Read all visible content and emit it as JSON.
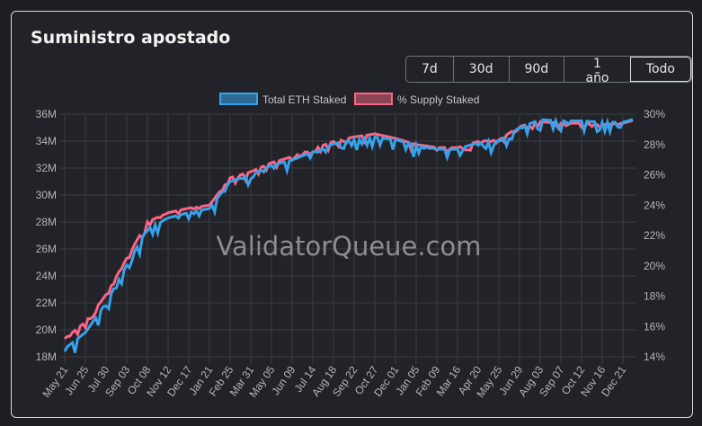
{
  "title": "Suministro apostado",
  "range_buttons": [
    {
      "label": "7d"
    },
    {
      "label": "30d"
    },
    {
      "label": "90d"
    },
    {
      "label": "1 año"
    },
    {
      "label": "Todo",
      "active": true
    }
  ],
  "watermark": "ValidatorQueue.com",
  "colors": {
    "eth": "#36a2eb",
    "supply": "#ff6384"
  },
  "chart_data": {
    "type": "line",
    "legend": [
      "Total ETH Staked",
      "% Supply Staked"
    ],
    "legend_position": "top",
    "x": [
      "May 21",
      "Jun 25",
      "Jul 30",
      "Sep 03",
      "Oct 08",
      "Nov 12",
      "Dec 17",
      "Jan 21",
      "Feb 25",
      "Mar 31",
      "May 05",
      "Jun 09",
      "Jul 14",
      "Aug 18",
      "Sep 22",
      "Oct 27",
      "Dec 01",
      "Jan 05",
      "Feb 09",
      "Mar 16",
      "Apr 20",
      "May 25",
      "Jun 29",
      "Aug 03",
      "Sep 07",
      "Oct 12",
      "Nov 16",
      "Dec 21"
    ],
    "y_left": {
      "ticks": [
        "18M",
        "20M",
        "22M",
        "24M",
        "26M",
        "28M",
        "30M",
        "32M",
        "34M",
        "36M"
      ],
      "range": [
        18,
        36
      ]
    },
    "y_right": {
      "ticks": [
        "14%",
        "16%",
        "18%",
        "20%",
        "22%",
        "24%",
        "26%",
        "28%",
        "30%"
      ],
      "range": [
        14,
        30
      ]
    },
    "grid": true,
    "series": [
      {
        "name": "Total ETH Staked",
        "unit": "M",
        "values": [
          18.6,
          19.8,
          22.0,
          24.8,
          27.5,
          28.3,
          28.7,
          29.0,
          31.0,
          31.5,
          32.2,
          32.6,
          33.2,
          33.8,
          34.1,
          34.3,
          34.1,
          33.7,
          33.4,
          33.4,
          33.9,
          34.0,
          35.0,
          35.6,
          35.5,
          35.5,
          35.4,
          35.4
        ]
      },
      {
        "name": "% Supply Staked",
        "unit": "%",
        "values": [
          15.2,
          16.3,
          18.1,
          20.5,
          22.9,
          23.5,
          23.8,
          24.0,
          25.8,
          26.2,
          26.8,
          27.2,
          27.7,
          28.2,
          28.5,
          28.7,
          28.4,
          28.0,
          27.8,
          27.8,
          28.2,
          28.3,
          29.2,
          29.5,
          29.4,
          29.4,
          29.3,
          29.4
        ]
      }
    ]
  }
}
